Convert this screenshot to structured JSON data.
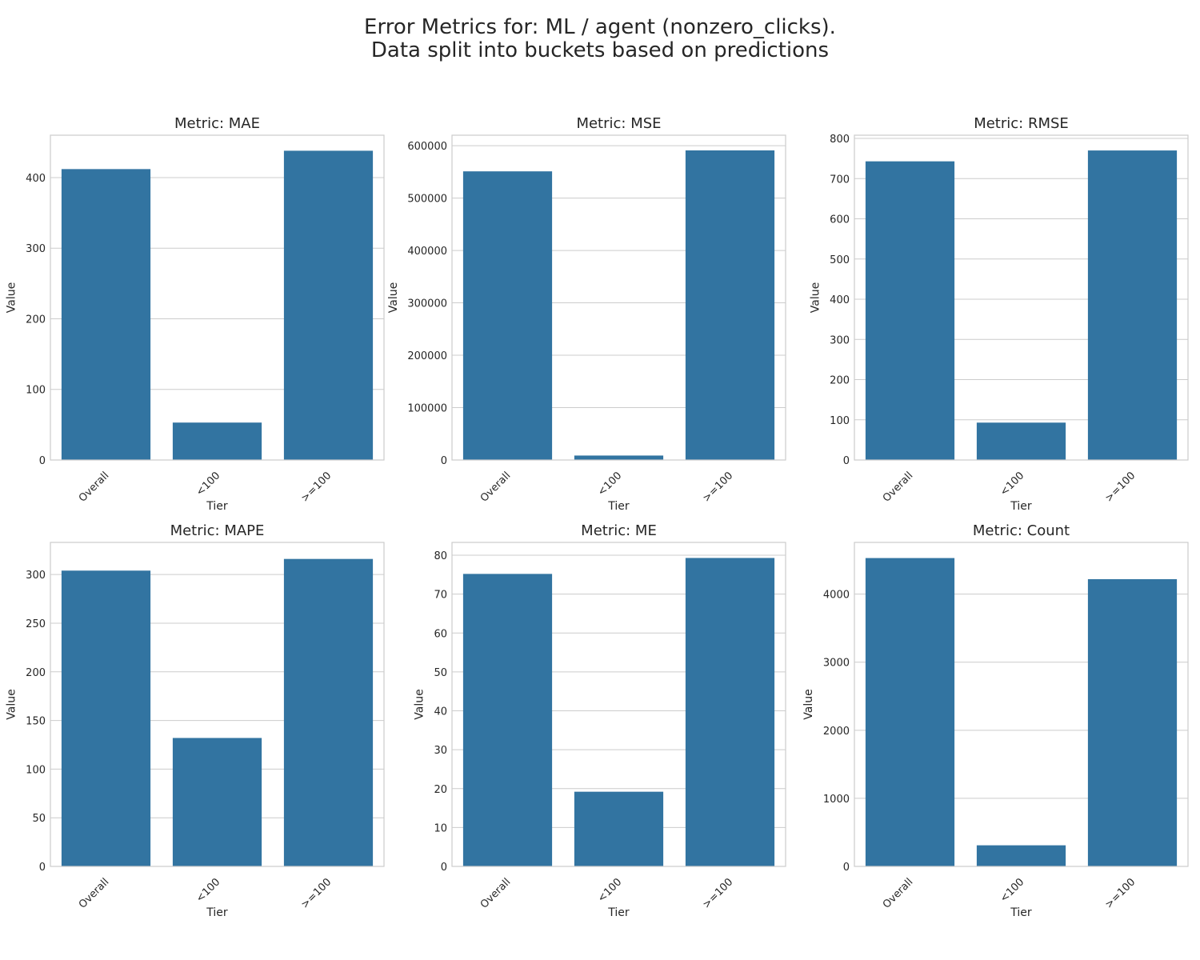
{
  "figure": {
    "title_lines": [
      "Error Metrics for: ML / agent (nonzero_clicks).",
      "Data split into buckets based on predictions"
    ]
  },
  "style": {
    "bar_color": "#3274a1",
    "grid_color": "#cccccc",
    "spine_color": "#cccccc",
    "text_color": "#262626"
  },
  "chart_data": [
    {
      "type": "bar",
      "title": "Metric: MAE",
      "xlabel": "Tier",
      "ylabel": "Value",
      "categories": [
        "Overall",
        "<100",
        ">=100"
      ],
      "values": [
        412,
        53,
        438
      ],
      "ylim": [
        0,
        460
      ],
      "yticks": [
        0,
        100,
        200,
        300,
        400
      ],
      "grid": true
    },
    {
      "type": "bar",
      "title": "Metric: MSE",
      "xlabel": "Tier",
      "ylabel": "Value",
      "categories": [
        "Overall",
        "<100",
        ">=100"
      ],
      "values": [
        551000,
        8500,
        591000
      ],
      "ylim": [
        0,
        620000
      ],
      "yticks": [
        0,
        100000,
        200000,
        300000,
        400000,
        500000,
        600000
      ],
      "grid": true
    },
    {
      "type": "bar",
      "title": "Metric: RMSE",
      "xlabel": "Tier",
      "ylabel": "Value",
      "categories": [
        "Overall",
        "<100",
        ">=100"
      ],
      "values": [
        743,
        93,
        770
      ],
      "ylim": [
        0,
        808
      ],
      "yticks": [
        0,
        100,
        200,
        300,
        400,
        500,
        600,
        700,
        800
      ],
      "grid": true
    },
    {
      "type": "bar",
      "title": "Metric: MAPE",
      "xlabel": "Tier",
      "ylabel": "Value",
      "categories": [
        "Overall",
        "<100",
        ">=100"
      ],
      "values": [
        304,
        132,
        316
      ],
      "ylim": [
        0,
        333
      ],
      "yticks": [
        0,
        50,
        100,
        150,
        200,
        250,
        300
      ],
      "grid": true
    },
    {
      "type": "bar",
      "title": "Metric: ME",
      "xlabel": "Tier",
      "ylabel": "Value",
      "categories": [
        "Overall",
        "<100",
        ">=100"
      ],
      "values": [
        75.2,
        19.2,
        79.3
      ],
      "ylim": [
        0,
        83.3
      ],
      "yticks": [
        0,
        10,
        20,
        30,
        40,
        50,
        60,
        70,
        80
      ],
      "grid": true
    },
    {
      "type": "bar",
      "title": "Metric: Count",
      "xlabel": "Tier",
      "ylabel": "Value",
      "categories": [
        "Overall",
        "<100",
        ">=100"
      ],
      "values": [
        4530,
        310,
        4220
      ],
      "ylim": [
        0,
        4760
      ],
      "yticks": [
        0,
        1000,
        2000,
        3000,
        4000
      ],
      "grid": true
    }
  ]
}
